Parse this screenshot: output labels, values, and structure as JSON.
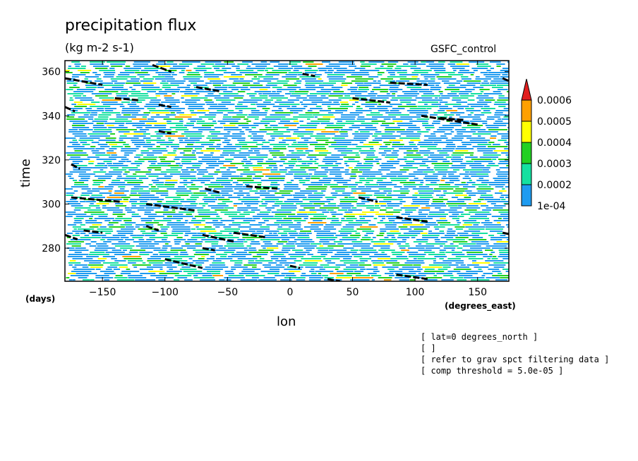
{
  "chart_data": {
    "type": "heatmap",
    "title": "precipitation flux",
    "units": "(kg m-2 s-1)",
    "source_label": "GSFC_control",
    "xlabel": "lon",
    "ylabel": "time",
    "x_unit": "(degrees_east)",
    "y_unit": "(days)",
    "xlim": [
      -180,
      175
    ],
    "ylim": [
      265,
      365
    ],
    "x_ticks": [
      -150,
      -100,
      -50,
      0,
      50,
      100,
      150
    ],
    "y_ticks": [
      280,
      300,
      320,
      340,
      360
    ],
    "colorbar": {
      "levels": [
        "1e-04",
        "0.0002",
        "0.0003",
        "0.0004",
        "0.0005",
        "0.0006"
      ],
      "colors": [
        "#1e9bf0",
        "#14e0a0",
        "#22d022",
        "#ffff00",
        "#ffa000",
        "#e11e1e"
      ],
      "extend": "max"
    },
    "filtered_segments": [
      {
        "lon": [
          -180,
          -150
        ],
        "time": [
          357,
          354
        ]
      },
      {
        "lon": [
          -110,
          -95
        ],
        "time": [
          363,
          360
        ]
      },
      {
        "lon": [
          -75,
          -55
        ],
        "time": [
          353,
          351
        ]
      },
      {
        "lon": [
          -140,
          -120
        ],
        "time": [
          348,
          347
        ]
      },
      {
        "lon": [
          -105,
          -95
        ],
        "time": [
          345,
          344
        ]
      },
      {
        "lon": [
          -180,
          -172
        ],
        "time": [
          344,
          342
        ]
      },
      {
        "lon": [
          -105,
          -95
        ],
        "time": [
          333,
          332
        ]
      },
      {
        "lon": [
          -175,
          -168
        ],
        "time": [
          318,
          316
        ]
      },
      {
        "lon": [
          -175,
          -135
        ],
        "time": [
          303,
          301
        ]
      },
      {
        "lon": [
          -115,
          -75
        ],
        "time": [
          300,
          297
        ]
      },
      {
        "lon": [
          -68,
          -55
        ],
        "time": [
          307,
          305
        ]
      },
      {
        "lon": [
          -35,
          -10
        ],
        "time": [
          308,
          307
        ]
      },
      {
        "lon": [
          -180,
          -170
        ],
        "time": [
          286,
          284
        ]
      },
      {
        "lon": [
          -165,
          -150
        ],
        "time": [
          288,
          287
        ]
      },
      {
        "lon": [
          -115,
          -105
        ],
        "time": [
          290,
          288
        ]
      },
      {
        "lon": [
          -70,
          -45
        ],
        "time": [
          286,
          283
        ]
      },
      {
        "lon": [
          -45,
          -20
        ],
        "time": [
          287,
          285
        ]
      },
      {
        "lon": [
          -70,
          -60
        ],
        "time": [
          280,
          279
        ]
      },
      {
        "lon": [
          -100,
          -70
        ],
        "time": [
          275,
          271
        ]
      },
      {
        "lon": [
          0,
          8
        ],
        "time": [
          272,
          271
        ]
      },
      {
        "lon": [
          30,
          40
        ],
        "time": [
          266,
          265
        ]
      },
      {
        "lon": [
          55,
          70
        ],
        "time": [
          303,
          301
        ]
      },
      {
        "lon": [
          85,
          110
        ],
        "time": [
          294,
          292
        ]
      },
      {
        "lon": [
          85,
          110
        ],
        "time": [
          268,
          266
        ]
      },
      {
        "lon": [
          50,
          80
        ],
        "time": [
          348,
          346
        ]
      },
      {
        "lon": [
          80,
          110
        ],
        "time": [
          355,
          354
        ]
      },
      {
        "lon": [
          105,
          150
        ],
        "time": [
          340,
          336
        ]
      },
      {
        "lon": [
          120,
          140
        ],
        "time": [
          339,
          338
        ]
      },
      {
        "lon": [
          170,
          178
        ],
        "time": [
          357,
          355
        ]
      },
      {
        "lon": [
          10,
          20
        ],
        "time": [
          359,
          358
        ]
      },
      {
        "lon": [
          170,
          178
        ],
        "time": [
          287,
          286
        ]
      }
    ]
  },
  "notes": [
    "[ lat=0 degrees_north ]",
    "[  ]",
    "[ refer to grav spct filtering data ]",
    "[ comp threshold = 5.0e-05 ]"
  ]
}
